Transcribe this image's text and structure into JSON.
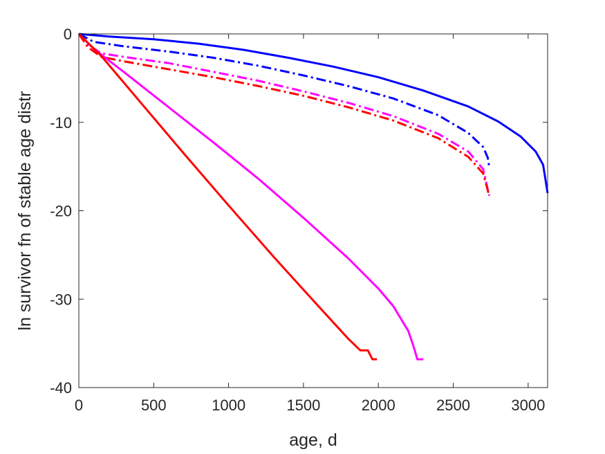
{
  "chart_data": {
    "type": "line",
    "title": "",
    "xlabel": "age, d",
    "ylabel": "ln survivor fn of stable age distr",
    "xlim": [
      0,
      3130
    ],
    "ylim": [
      -40,
      0
    ],
    "xticks": [
      0,
      500,
      1000,
      1500,
      2000,
      2500,
      3000
    ],
    "yticks": [
      0,
      -10,
      -20,
      -30,
      -40
    ],
    "xtick_labels": [
      "0",
      "500",
      "1000",
      "1500",
      "2000",
      "2500",
      "3000"
    ],
    "ytick_labels": [
      "0",
      "-10",
      "-20",
      "-30",
      "-40"
    ],
    "grid": false,
    "legend": "none",
    "series": [
      {
        "color": "#0000ff",
        "style": "solid",
        "x": [
          0,
          200,
          500,
          800,
          1100,
          1400,
          1700,
          2000,
          2300,
          2600,
          2800,
          2950,
          3050,
          3100,
          3130
        ],
        "y": [
          0,
          -0.3,
          -0.6,
          -1.1,
          -1.8,
          -2.7,
          -3.7,
          -4.9,
          -6.4,
          -8.2,
          -9.9,
          -11.6,
          -13.3,
          -14.8,
          -18.0
        ]
      },
      {
        "color": "#0000ff",
        "style": "dashdot",
        "x": [
          0,
          100,
          300,
          600,
          900,
          1200,
          1500,
          1800,
          2100,
          2400,
          2600,
          2700,
          2730,
          2740
        ],
        "y": [
          0,
          -0.9,
          -1.4,
          -2.0,
          -2.7,
          -3.6,
          -4.7,
          -5.9,
          -7.3,
          -9.2,
          -11.2,
          -12.8,
          -14.0,
          -15.0
        ]
      },
      {
        "color": "#ff00ff",
        "style": "dashdot",
        "x": [
          0,
          60,
          150,
          300,
          600,
          900,
          1200,
          1500,
          1800,
          2100,
          2400,
          2600,
          2700,
          2740
        ],
        "y": [
          0,
          -1.2,
          -2.2,
          -2.6,
          -3.3,
          -4.3,
          -5.3,
          -6.5,
          -7.8,
          -9.3,
          -11.3,
          -13.3,
          -15.3,
          -18.3
        ]
      },
      {
        "color": "#ff0000",
        "style": "dashdot",
        "x": [
          0,
          60,
          150,
          300,
          600,
          900,
          1200,
          1500,
          1800,
          2100,
          2400,
          2600,
          2700,
          2740
        ],
        "y": [
          0,
          -1.5,
          -2.6,
          -3.1,
          -4.0,
          -4.9,
          -5.9,
          -7.0,
          -8.3,
          -9.8,
          -11.8,
          -13.9,
          -15.8,
          -18.3
        ]
      },
      {
        "color": "#ff00ff",
        "style": "solid",
        "x": [
          0,
          100,
          300,
          600,
          900,
          1200,
          1500,
          1800,
          2000,
          2100,
          2200,
          2240,
          2260,
          2300
        ],
        "y": [
          0,
          -1.7,
          -4.3,
          -8.3,
          -12.3,
          -16.4,
          -20.8,
          -25.4,
          -28.8,
          -30.8,
          -33.6,
          -35.6,
          -36.8,
          -36.8
        ]
      },
      {
        "color": "#ff0000",
        "style": "solid",
        "x": [
          0,
          150,
          400,
          700,
          1000,
          1300,
          1600,
          1800,
          1880,
          1930,
          1960,
          1990
        ],
        "y": [
          0,
          -2.5,
          -7.5,
          -13.5,
          -19.4,
          -25.2,
          -30.8,
          -34.5,
          -35.8,
          -35.8,
          -36.8,
          -36.8
        ]
      }
    ]
  }
}
